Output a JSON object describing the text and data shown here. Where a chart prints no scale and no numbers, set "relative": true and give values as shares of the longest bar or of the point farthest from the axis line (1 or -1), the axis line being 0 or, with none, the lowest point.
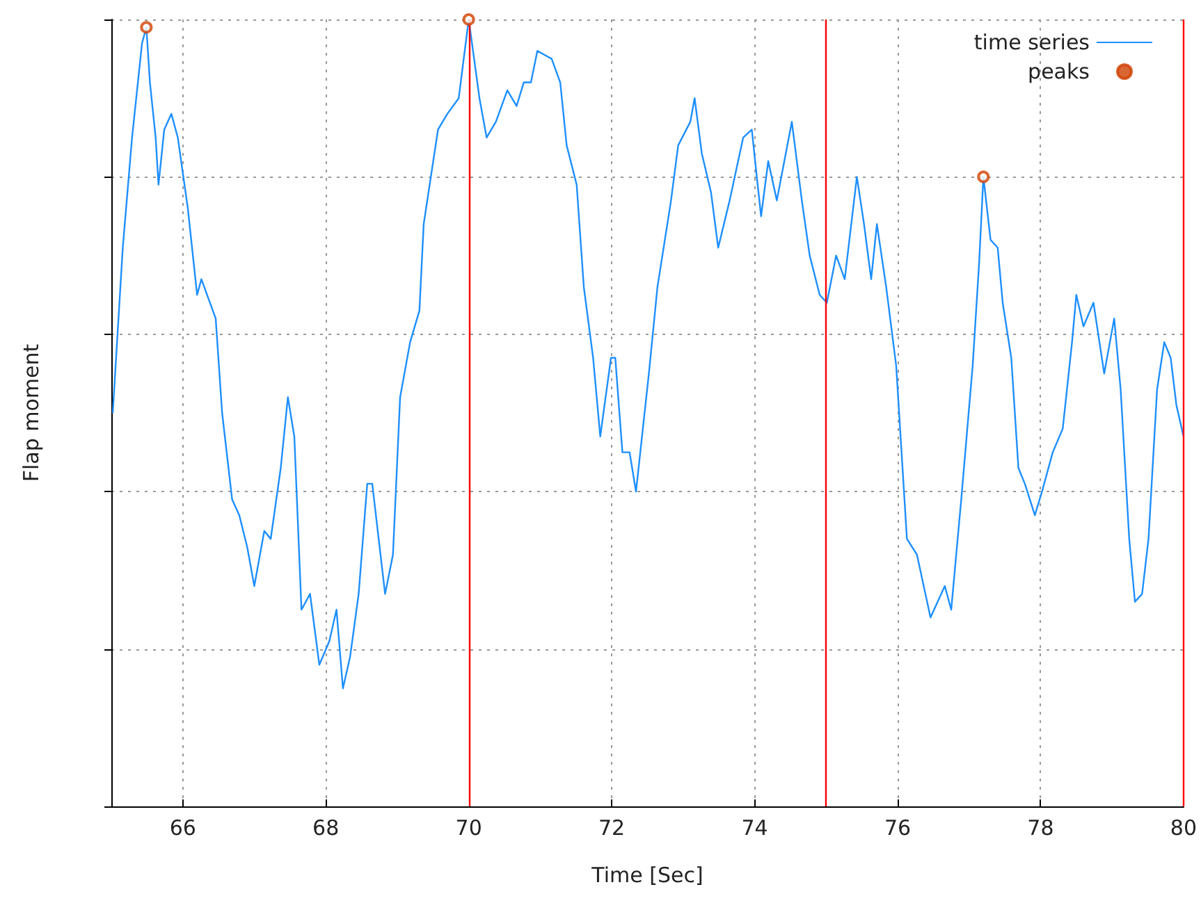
{
  "chart_data": {
    "type": "line",
    "xlabel": "Time [Sec]",
    "ylabel": "Flap moment",
    "relative": true,
    "xlim": [
      65,
      80
    ],
    "xticks": [
      66,
      68,
      70,
      72,
      74,
      76,
      78,
      80
    ],
    "grid": true,
    "legend": "top right",
    "series": [
      {
        "name": "time series",
        "type": "line",
        "color": "#1e8fff",
        "marker": "none",
        "x": [
          65.02,
          65.16,
          65.29,
          65.43,
          65.49,
          65.54,
          65.62,
          65.66,
          65.74,
          65.84,
          65.93,
          66.07,
          66.2,
          66.26,
          66.46,
          66.55,
          66.69,
          66.79,
          66.9,
          67.0,
          67.14,
          67.23,
          67.37,
          67.47,
          67.56,
          67.66,
          67.78,
          67.91,
          68.05,
          68.15,
          68.24,
          68.34,
          68.46,
          68.58,
          68.65,
          68.83,
          68.94,
          69.04,
          69.18,
          69.31,
          69.37,
          69.57,
          69.7,
          69.86,
          70.0,
          70.15,
          70.25,
          70.38,
          70.54,
          70.67,
          70.77,
          70.87,
          70.96,
          71.16,
          71.28,
          71.37,
          71.51,
          71.61,
          71.74,
          71.84,
          71.99,
          72.05,
          72.15,
          72.25,
          72.34,
          72.52,
          72.64,
          72.83,
          72.93,
          73.1,
          73.16,
          73.26,
          73.39,
          73.49,
          73.65,
          73.84,
          73.96,
          74.03,
          74.09,
          74.19,
          74.31,
          74.52,
          74.66,
          74.77,
          74.91,
          75.01,
          75.14,
          75.26,
          75.43,
          75.53,
          75.63,
          75.71,
          75.84,
          75.98,
          76.13,
          76.27,
          76.46,
          76.66,
          76.75,
          76.89,
          77.05,
          77.14,
          77.2,
          77.3,
          77.4,
          77.47,
          77.59,
          77.69,
          77.78,
          77.92,
          78.02,
          78.17,
          78.31,
          78.44,
          78.5,
          78.6,
          78.74,
          78.89,
          79.03,
          79.12,
          79.24,
          79.32,
          79.42,
          79.51,
          79.63,
          79.73,
          79.82,
          79.9,
          80.0
        ],
        "values": [
          0.5,
          0.71,
          0.85,
          0.97,
          0.99,
          0.92,
          0.85,
          0.79,
          0.86,
          0.88,
          0.85,
          0.76,
          0.65,
          0.67,
          0.62,
          0.5,
          0.39,
          0.37,
          0.33,
          0.28,
          0.35,
          0.34,
          0.43,
          0.52,
          0.47,
          0.25,
          0.27,
          0.18,
          0.21,
          0.25,
          0.15,
          0.19,
          0.27,
          0.41,
          0.41,
          0.27,
          0.32,
          0.52,
          0.59,
          0.63,
          0.74,
          0.86,
          0.88,
          0.9,
          1.0,
          0.9,
          0.85,
          0.87,
          0.91,
          0.89,
          0.92,
          0.92,
          0.96,
          0.95,
          0.92,
          0.84,
          0.79,
          0.66,
          0.57,
          0.47,
          0.57,
          0.57,
          0.45,
          0.45,
          0.4,
          0.55,
          0.66,
          0.77,
          0.84,
          0.87,
          0.9,
          0.83,
          0.78,
          0.71,
          0.77,
          0.85,
          0.86,
          0.8,
          0.75,
          0.82,
          0.77,
          0.87,
          0.77,
          0.7,
          0.65,
          0.64,
          0.7,
          0.67,
          0.8,
          0.74,
          0.67,
          0.74,
          0.66,
          0.56,
          0.34,
          0.32,
          0.24,
          0.28,
          0.25,
          0.39,
          0.56,
          0.69,
          0.8,
          0.72,
          0.71,
          0.64,
          0.57,
          0.43,
          0.41,
          0.37,
          0.4,
          0.45,
          0.48,
          0.59,
          0.65,
          0.61,
          0.64,
          0.55,
          0.62,
          0.53,
          0.34,
          0.26,
          0.27,
          0.34,
          0.53,
          0.59,
          0.57,
          0.51,
          0.47
        ]
      },
      {
        "name": "peaks",
        "type": "scatter",
        "color": "#d04000",
        "marker": "circle",
        "x": [
          65.49,
          70.0,
          77.2
        ],
        "values": [
          0.99,
          1.0,
          0.8
        ]
      }
    ],
    "ref_lines": [
      {
        "axis": "x",
        "value": 70,
        "color": "#ff0000"
      },
      {
        "axis": "x",
        "value": 75,
        "color": "#ff0000"
      },
      {
        "axis": "x",
        "value": 80,
        "color": "#ff0000"
      }
    ]
  }
}
